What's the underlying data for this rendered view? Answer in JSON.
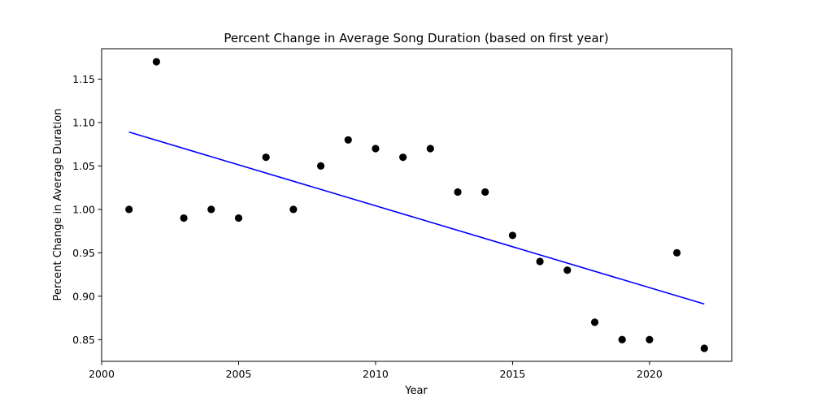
{
  "chart_data": {
    "type": "scatter",
    "title": "Percent Change in Average Song Duration (based on first year)",
    "xlabel": "Year",
    "ylabel": "Percent Change in Average Duration",
    "xlim": [
      2000,
      2023
    ],
    "ylim": [
      0.825,
      1.185
    ],
    "xticks": [
      2000,
      2005,
      2010,
      2015,
      2020
    ],
    "yticks": [
      0.85,
      0.9,
      0.95,
      1.0,
      1.05,
      1.1,
      1.15
    ],
    "grid": false,
    "series": [
      {
        "kind": "points",
        "color": "#000000",
        "x": [
          2001,
          2002,
          2003,
          2004,
          2005,
          2006,
          2007,
          2008,
          2009,
          2010,
          2011,
          2012,
          2013,
          2014,
          2015,
          2016,
          2017,
          2018,
          2019,
          2020,
          2021,
          2022
        ],
        "y": [
          1.0,
          1.17,
          0.99,
          1.0,
          0.99,
          1.06,
          1.0,
          1.05,
          1.08,
          1.07,
          1.06,
          1.07,
          1.02,
          1.02,
          0.97,
          0.94,
          0.93,
          0.87,
          0.85,
          0.85,
          0.95,
          0.84
        ]
      },
      {
        "kind": "trend line",
        "color": "#0000ff",
        "x": [
          2001,
          2022
        ],
        "y": [
          1.089,
          0.891
        ]
      }
    ]
  }
}
